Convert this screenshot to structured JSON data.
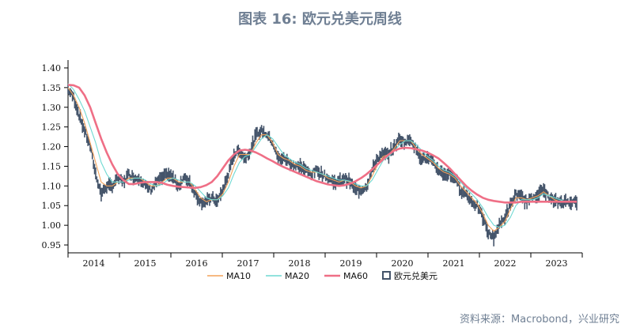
{
  "title": "图表 16: 欧元兑美元周线",
  "source": "资料来源：Macrobond，兴业研究",
  "chart_data": {
    "type": "line",
    "xlim": [
      2014.0,
      2023.3
    ],
    "ylim": [
      0.93,
      1.42
    ],
    "yticks": [
      "0.95",
      "1.00",
      "1.05",
      "1.10",
      "1.15",
      "1.20",
      "1.25",
      "1.30",
      "1.35",
      "1.40"
    ],
    "xtick_labels": [
      "2014",
      "2015",
      "2016",
      "2017",
      "2018",
      "2019",
      "2020",
      "2021",
      "2022",
      "2023"
    ],
    "legend_position": "bottom",
    "legend": [
      {
        "label": "MA10",
        "color": "#f4a259"
      },
      {
        "label": "MA20",
        "color": "#6fd9d2"
      },
      {
        "label": "MA60",
        "color": "#ef6f86"
      },
      {
        "label": "欧元兑美元",
        "color": "#44546a"
      }
    ],
    "series": [
      {
        "name": "欧元兑美元",
        "kind": "candlestick",
        "color": "#44546a",
        "x": [
          2014.0,
          2014.1,
          2014.2,
          2014.3,
          2014.4,
          2014.5,
          2014.6,
          2014.7,
          2014.8,
          2014.9,
          2015.0,
          2015.1,
          2015.2,
          2015.3,
          2015.4,
          2015.5,
          2015.6,
          2015.7,
          2015.8,
          2015.9,
          2016.0,
          2016.1,
          2016.2,
          2016.3,
          2016.4,
          2016.5,
          2016.6,
          2016.7,
          2016.8,
          2016.9,
          2017.0,
          2017.1,
          2017.2,
          2017.3,
          2017.4,
          2017.5,
          2017.6,
          2017.7,
          2017.8,
          2017.9,
          2018.0,
          2018.1,
          2018.2,
          2018.3,
          2018.4,
          2018.5,
          2018.6,
          2018.7,
          2018.8,
          2018.9,
          2019.0,
          2019.1,
          2019.2,
          2019.3,
          2019.4,
          2019.5,
          2019.6,
          2019.7,
          2019.8,
          2019.9,
          2020.0,
          2020.1,
          2020.2,
          2020.3,
          2020.4,
          2020.5,
          2020.6,
          2020.7,
          2020.8,
          2020.9,
          2021.0,
          2021.1,
          2021.2,
          2021.3,
          2021.4,
          2021.5,
          2021.6,
          2021.7,
          2021.8,
          2021.9,
          2022.0,
          2022.1,
          2022.2,
          2022.3,
          2022.4,
          2022.5,
          2022.6,
          2022.7,
          2022.8,
          2022.9,
          2023.0,
          2023.1,
          2023.2
        ],
        "values": [
          1.345,
          1.325,
          1.28,
          1.24,
          1.2,
          1.13,
          1.08,
          1.1,
          1.1,
          1.12,
          1.11,
          1.13,
          1.12,
          1.12,
          1.1,
          1.09,
          1.11,
          1.12,
          1.13,
          1.12,
          1.1,
          1.12,
          1.11,
          1.08,
          1.06,
          1.06,
          1.07,
          1.06,
          1.09,
          1.13,
          1.18,
          1.19,
          1.17,
          1.19,
          1.23,
          1.24,
          1.23,
          1.21,
          1.17,
          1.17,
          1.16,
          1.15,
          1.15,
          1.14,
          1.13,
          1.14,
          1.13,
          1.12,
          1.11,
          1.11,
          1.12,
          1.11,
          1.09,
          1.09,
          1.1,
          1.14,
          1.17,
          1.18,
          1.18,
          1.2,
          1.22,
          1.21,
          1.22,
          1.19,
          1.17,
          1.17,
          1.16,
          1.14,
          1.13,
          1.13,
          1.12,
          1.09,
          1.08,
          1.06,
          1.05,
          1.02,
          0.98,
          0.97,
          1.0,
          1.02,
          1.05,
          1.08,
          1.07,
          1.06,
          1.07,
          1.08,
          1.09,
          1.07,
          1.06,
          1.06,
          1.06,
          1.06,
          1.06
        ]
      },
      {
        "name": "MA10",
        "color": "#f4a259",
        "x": [
          2014.0,
          2014.1,
          2014.2,
          2014.3,
          2014.4,
          2014.5,
          2014.6,
          2014.7,
          2014.8,
          2014.9,
          2015.0,
          2015.1,
          2015.2,
          2015.3,
          2015.4,
          2015.5,
          2015.6,
          2015.7,
          2015.8,
          2015.9,
          2016.0,
          2016.1,
          2016.2,
          2016.3,
          2016.4,
          2016.5,
          2016.6,
          2016.7,
          2016.8,
          2016.9,
          2017.0,
          2017.1,
          2017.2,
          2017.3,
          2017.4,
          2017.5,
          2017.6,
          2017.7,
          2017.8,
          2017.9,
          2018.0,
          2018.1,
          2018.2,
          2018.3,
          2018.4,
          2018.5,
          2018.6,
          2018.7,
          2018.8,
          2018.9,
          2019.0,
          2019.1,
          2019.2,
          2019.3,
          2019.4,
          2019.5,
          2019.6,
          2019.7,
          2019.8,
          2019.9,
          2020.0,
          2020.1,
          2020.2,
          2020.3,
          2020.4,
          2020.5,
          2020.6,
          2020.7,
          2020.8,
          2020.9,
          2021.0,
          2021.1,
          2021.2,
          2021.3,
          2021.4,
          2021.5,
          2021.6,
          2021.7,
          2021.8,
          2021.9,
          2022.0,
          2022.1,
          2022.2,
          2022.3,
          2022.4,
          2022.5,
          2022.6,
          2022.7,
          2022.8,
          2022.9,
          2023.0,
          2023.1,
          2023.2
        ],
        "values": [
          1.35,
          1.33,
          1.3,
          1.26,
          1.21,
          1.16,
          1.11,
          1.1,
          1.1,
          1.11,
          1.11,
          1.12,
          1.12,
          1.12,
          1.11,
          1.1,
          1.1,
          1.11,
          1.12,
          1.12,
          1.11,
          1.11,
          1.11,
          1.09,
          1.07,
          1.06,
          1.065,
          1.065,
          1.08,
          1.11,
          1.15,
          1.18,
          1.18,
          1.18,
          1.21,
          1.23,
          1.23,
          1.21,
          1.18,
          1.17,
          1.165,
          1.155,
          1.15,
          1.14,
          1.135,
          1.135,
          1.13,
          1.12,
          1.115,
          1.11,
          1.115,
          1.11,
          1.1,
          1.095,
          1.1,
          1.125,
          1.155,
          1.175,
          1.18,
          1.195,
          1.215,
          1.215,
          1.215,
          1.195,
          1.18,
          1.17,
          1.16,
          1.145,
          1.135,
          1.13,
          1.12,
          1.1,
          1.085,
          1.07,
          1.055,
          1.03,
          1.0,
          0.985,
          0.995,
          1.01,
          1.04,
          1.07,
          1.07,
          1.065,
          1.07,
          1.075,
          1.085,
          1.075,
          1.065,
          1.06,
          1.06,
          1.06,
          1.06
        ]
      },
      {
        "name": "MA20",
        "color": "#6fd9d2",
        "x": [
          2014.0,
          2014.1,
          2014.2,
          2014.3,
          2014.4,
          2014.5,
          2014.6,
          2014.7,
          2014.8,
          2014.9,
          2015.0,
          2015.1,
          2015.2,
          2015.3,
          2015.4,
          2015.5,
          2015.6,
          2015.7,
          2015.8,
          2015.9,
          2016.0,
          2016.1,
          2016.2,
          2016.3,
          2016.4,
          2016.5,
          2016.6,
          2016.7,
          2016.8,
          2016.9,
          2017.0,
          2017.1,
          2017.2,
          2017.3,
          2017.4,
          2017.5,
          2017.6,
          2017.7,
          2017.8,
          2017.9,
          2018.0,
          2018.1,
          2018.2,
          2018.3,
          2018.4,
          2018.5,
          2018.6,
          2018.7,
          2018.8,
          2018.9,
          2019.0,
          2019.1,
          2019.2,
          2019.3,
          2019.4,
          2019.5,
          2019.6,
          2019.7,
          2019.8,
          2019.9,
          2020.0,
          2020.1,
          2020.2,
          2020.3,
          2020.4,
          2020.5,
          2020.6,
          2020.7,
          2020.8,
          2020.9,
          2021.0,
          2021.1,
          2021.2,
          2021.3,
          2021.4,
          2021.5,
          2021.6,
          2021.7,
          2021.8,
          2021.9,
          2022.0,
          2022.1,
          2022.2,
          2022.3,
          2022.4,
          2022.5,
          2022.6,
          2022.7,
          2022.8,
          2022.9,
          2023.0,
          2023.1,
          2023.2
        ],
        "values": [
          1.36,
          1.345,
          1.32,
          1.29,
          1.25,
          1.21,
          1.16,
          1.13,
          1.11,
          1.11,
          1.11,
          1.115,
          1.12,
          1.12,
          1.115,
          1.105,
          1.1,
          1.105,
          1.115,
          1.12,
          1.115,
          1.11,
          1.11,
          1.1,
          1.085,
          1.07,
          1.065,
          1.065,
          1.075,
          1.095,
          1.13,
          1.16,
          1.175,
          1.18,
          1.2,
          1.22,
          1.23,
          1.22,
          1.2,
          1.18,
          1.17,
          1.16,
          1.155,
          1.145,
          1.14,
          1.135,
          1.13,
          1.125,
          1.12,
          1.115,
          1.115,
          1.112,
          1.105,
          1.1,
          1.1,
          1.115,
          1.14,
          1.165,
          1.175,
          1.19,
          1.205,
          1.215,
          1.215,
          1.205,
          1.19,
          1.175,
          1.165,
          1.15,
          1.14,
          1.135,
          1.125,
          1.11,
          1.095,
          1.08,
          1.065,
          1.045,
          1.02,
          1.0,
          0.995,
          1.0,
          1.02,
          1.05,
          1.065,
          1.065,
          1.065,
          1.07,
          1.08,
          1.075,
          1.07,
          1.065,
          1.06,
          1.06,
          1.06
        ]
      },
      {
        "name": "MA60",
        "color": "#ef6f86",
        "x": [
          2014.0,
          2014.1,
          2014.2,
          2014.3,
          2014.4,
          2014.5,
          2014.6,
          2014.7,
          2014.8,
          2014.9,
          2015.0,
          2015.1,
          2015.2,
          2015.3,
          2015.4,
          2015.5,
          2015.6,
          2015.7,
          2015.8,
          2015.9,
          2016.0,
          2016.1,
          2016.2,
          2016.3,
          2016.4,
          2016.5,
          2016.6,
          2016.7,
          2016.8,
          2016.9,
          2017.0,
          2017.1,
          2017.2,
          2017.3,
          2017.4,
          2017.5,
          2017.6,
          2017.7,
          2017.8,
          2017.9,
          2018.0,
          2018.1,
          2018.2,
          2018.3,
          2018.4,
          2018.5,
          2018.6,
          2018.7,
          2018.8,
          2018.9,
          2019.0,
          2019.1,
          2019.2,
          2019.3,
          2019.4,
          2019.5,
          2019.6,
          2019.7,
          2019.8,
          2019.9,
          2020.0,
          2020.1,
          2020.2,
          2020.3,
          2020.4,
          2020.5,
          2020.6,
          2020.7,
          2020.8,
          2020.9,
          2021.0,
          2021.1,
          2021.2,
          2021.3,
          2021.4,
          2021.5,
          2021.6,
          2021.7,
          2021.8,
          2021.9,
          2022.0,
          2022.1,
          2022.2,
          2022.3,
          2022.4,
          2022.5,
          2022.6,
          2022.7,
          2022.8,
          2022.9,
          2023.0,
          2023.1,
          2023.2
        ],
        "values": [
          1.357,
          1.356,
          1.35,
          1.33,
          1.3,
          1.26,
          1.22,
          1.185,
          1.155,
          1.13,
          1.115,
          1.105,
          1.105,
          1.108,
          1.11,
          1.11,
          1.11,
          1.108,
          1.103,
          1.1,
          1.098,
          1.097,
          1.096,
          1.095,
          1.097,
          1.102,
          1.11,
          1.125,
          1.145,
          1.165,
          1.18,
          1.19,
          1.192,
          1.19,
          1.185,
          1.178,
          1.17,
          1.163,
          1.155,
          1.148,
          1.142,
          1.136,
          1.13,
          1.124,
          1.118,
          1.112,
          1.108,
          1.104,
          1.102,
          1.1,
          1.102,
          1.106,
          1.112,
          1.12,
          1.13,
          1.142,
          1.155,
          1.168,
          1.18,
          1.19,
          1.195,
          1.197,
          1.196,
          1.193,
          1.19,
          1.185,
          1.178,
          1.17,
          1.158,
          1.145,
          1.13,
          1.115,
          1.1,
          1.088,
          1.078,
          1.07,
          1.065,
          1.062,
          1.06,
          1.058,
          1.058,
          1.058,
          1.06,
          1.06,
          1.06,
          1.06,
          1.06,
          1.06,
          1.06,
          1.06,
          1.06,
          1.06,
          1.06
        ]
      }
    ]
  }
}
